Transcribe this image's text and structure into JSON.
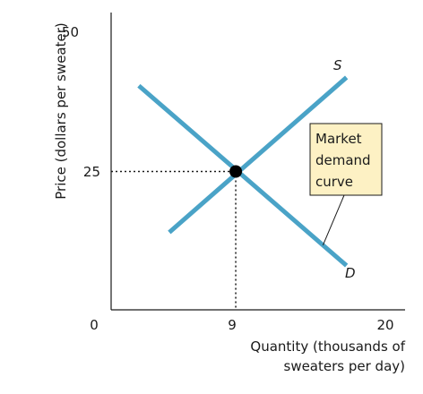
{
  "chart_data": {
    "type": "line",
    "ylabel": "Price (dollars per sweater)",
    "xlabel_lines": [
      "Quantity (thousands of",
      "sweaters per day)"
    ],
    "origin_label": "0",
    "xlim": [
      0,
      20
    ],
    "ylim": [
      0,
      53
    ],
    "x_ticks": [
      9,
      20
    ],
    "y_ticks": [
      25,
      50
    ],
    "series": [
      {
        "name": "S",
        "color": "#4aa3c7",
        "points": [
          [
            4.2,
            14
          ],
          [
            17,
            42
          ]
        ]
      },
      {
        "name": "D",
        "color": "#4aa3c7",
        "points": [
          [
            2,
            40.5
          ],
          [
            17,
            8
          ]
        ]
      }
    ],
    "equilibrium": {
      "x": 9,
      "y": 25
    },
    "callout": {
      "lines": [
        "Market",
        "demand",
        "curve"
      ],
      "fill": "#fdf1c4",
      "points_to": "D"
    },
    "grid": false
  }
}
